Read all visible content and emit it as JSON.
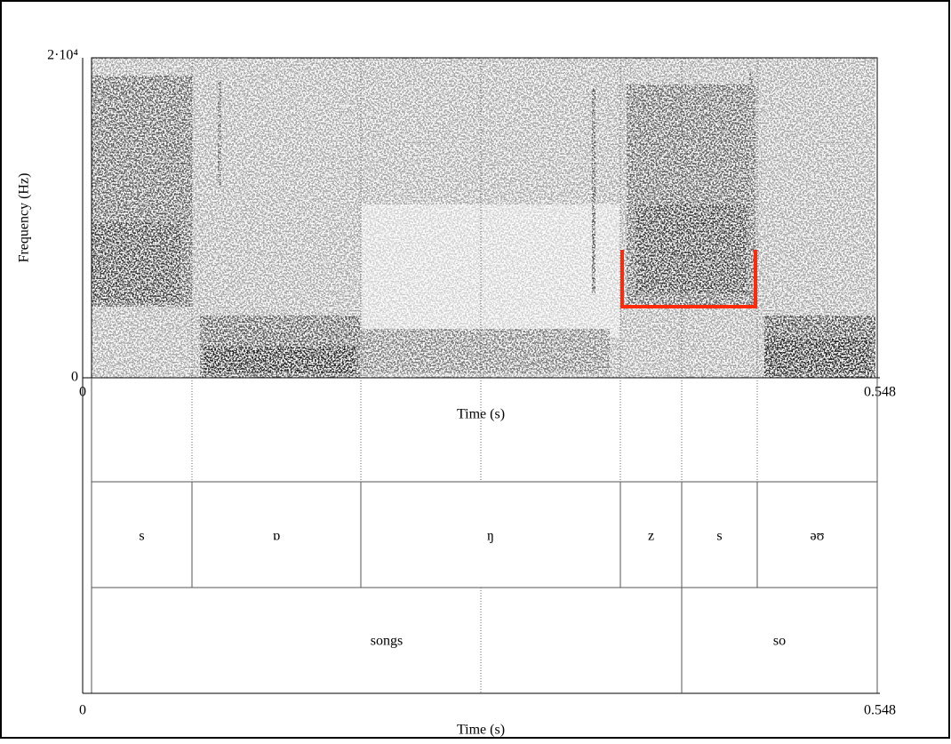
{
  "spectrogram": {
    "y_axis_label": "Frequency (Hz)",
    "y_top_label": "2·10⁴",
    "y_bottom_label": "0",
    "x_start_label": "0",
    "x_end_label": "0.548",
    "x_axis_label": "Time (s)"
  },
  "tiers": [
    {
      "intervals": [
        "s",
        "ɒ",
        "ŋ",
        "z",
        "s",
        "əʊ"
      ]
    },
    {
      "intervals": [
        "songs",
        "so"
      ]
    }
  ],
  "bottom_axis": {
    "x_start_label": "0",
    "x_end_label": "0.548",
    "x_axis_label": "Time (s)"
  }
}
